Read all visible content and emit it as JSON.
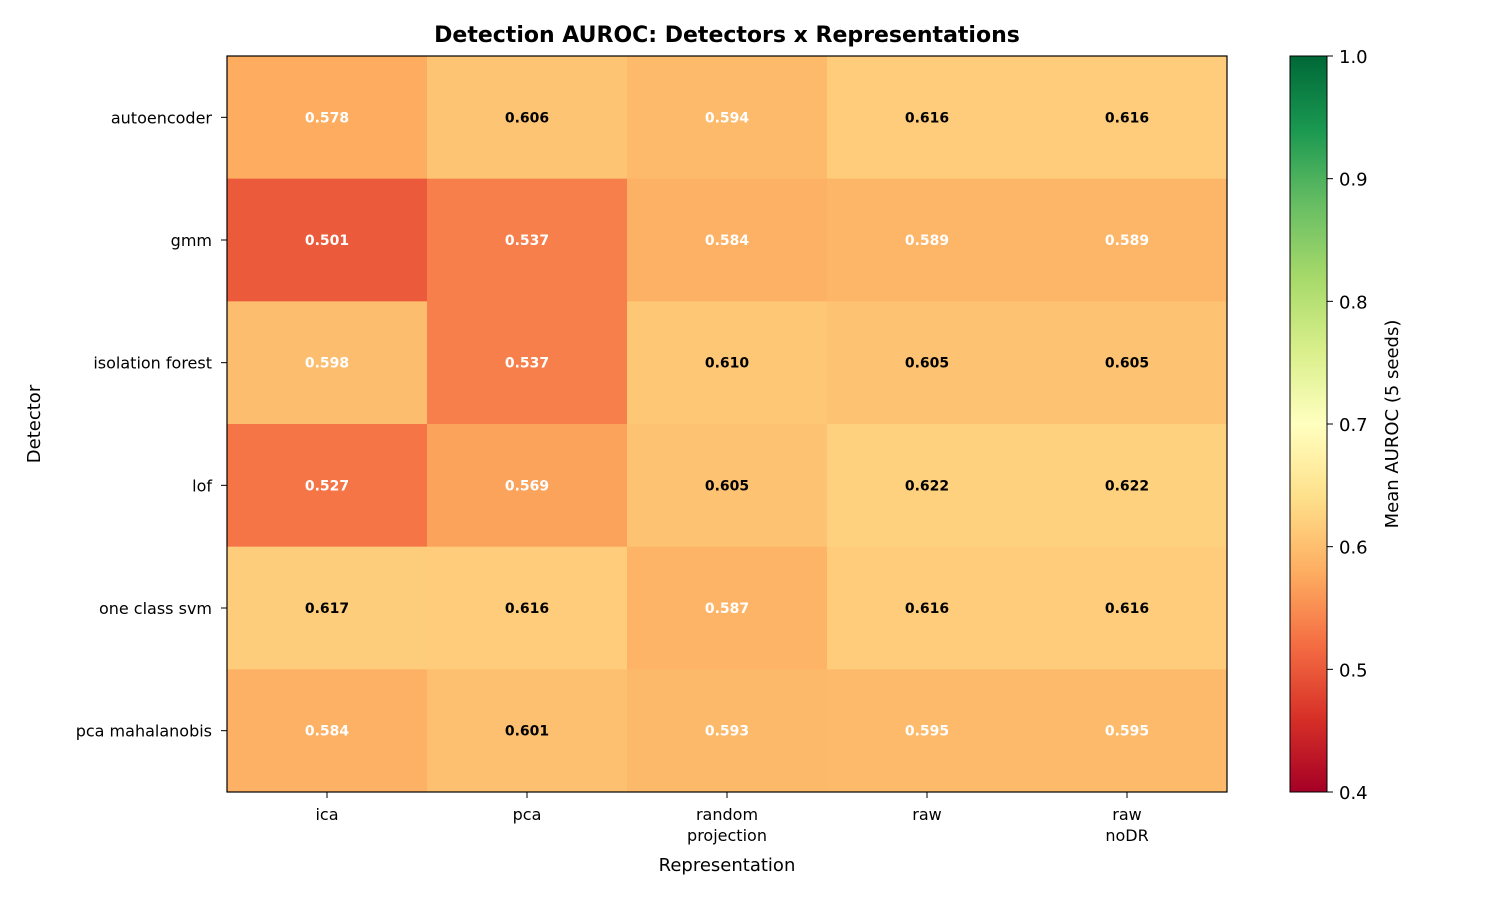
{
  "chart_data": {
    "type": "heatmap",
    "title": "Detection AUROC: Detectors x Representations",
    "xlabel": "Representation",
    "ylabel": "Detector",
    "x_categories": [
      "ica",
      "pca",
      "random\nprojection",
      "raw",
      "raw\nnoDR"
    ],
    "y_categories": [
      "autoencoder",
      "gmm",
      "isolation forest",
      "lof",
      "one class svm",
      "pca mahalanobis"
    ],
    "values": [
      [
        0.578,
        0.606,
        0.594,
        0.616,
        0.616
      ],
      [
        0.501,
        0.537,
        0.584,
        0.589,
        0.589
      ],
      [
        0.598,
        0.537,
        0.61,
        0.605,
        0.605
      ],
      [
        0.527,
        0.569,
        0.605,
        0.622,
        0.622
      ],
      [
        0.617,
        0.616,
        0.587,
        0.616,
        0.616
      ],
      [
        0.584,
        0.601,
        0.593,
        0.595,
        0.595
      ]
    ],
    "value_labels": [
      [
        "0.578",
        "0.606",
        "0.594",
        "0.616",
        "0.616"
      ],
      [
        "0.501",
        "0.537",
        "0.584",
        "0.589",
        "0.589"
      ],
      [
        "0.598",
        "0.537",
        "0.610",
        "0.605",
        "0.605"
      ],
      [
        "0.527",
        "0.569",
        "0.605",
        "0.622",
        "0.622"
      ],
      [
        "0.617",
        "0.616",
        "0.587",
        "0.616",
        "0.616"
      ],
      [
        "0.584",
        "0.601",
        "0.593",
        "0.595",
        "0.595"
      ]
    ],
    "colormap": "RdYlGn",
    "vmin": 0.4,
    "vmax": 1.0,
    "colorbar": {
      "label": "Mean AUROC (5 seeds)",
      "ticks": [
        0.4,
        0.5,
        0.6,
        0.7,
        0.8,
        0.9,
        1.0
      ],
      "tick_labels": [
        "0.4",
        "0.5",
        "0.6",
        "0.7",
        "0.8",
        "0.9",
        "1.0"
      ]
    },
    "text_color_threshold": 0.6,
    "grid": false
  }
}
